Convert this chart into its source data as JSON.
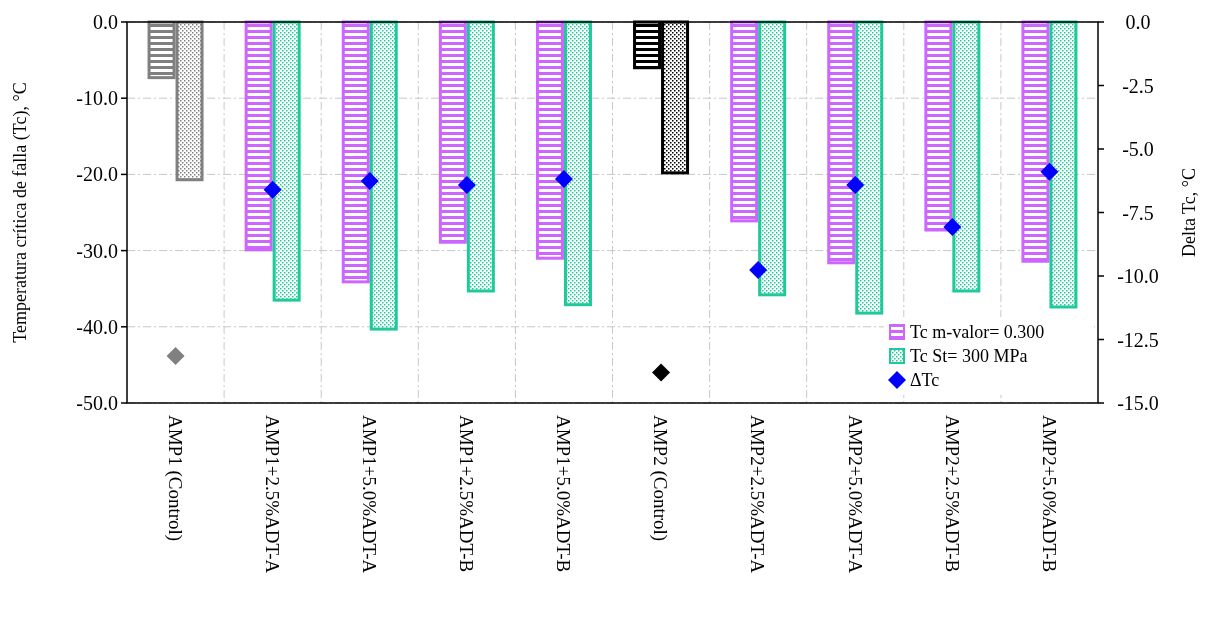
{
  "chart_data": {
    "type": "bar",
    "ylabel": "Temperatura crítica de falla (Tc), °C",
    "y2label": "Delta Tc, °C",
    "categories": [
      "AMP1 (Control)",
      "AMP1+2.5%ADT-A",
      "AMP1+5.0%ADT-A",
      "AMP1+2.5%ADT-B",
      "AMP1+5.0%ADT-B",
      "AMP2 (Control)",
      "AMP2+2.5%ADT-A",
      "AMP2+5.0%ADT-A",
      "AMP2+2.5%ADT-B",
      "AMP2+5.0%ADT-B"
    ],
    "series": [
      {
        "name": "Tc m-valor= 0.300",
        "color": "#cc66ff",
        "colors": [
          "#808080",
          "#cc66ff",
          "#cc66ff",
          "#cc66ff",
          "#cc66ff",
          "#000000",
          "#cc66ff",
          "#cc66ff",
          "#cc66ff",
          "#cc66ff"
        ],
        "values": [
          -7.3,
          -29.9,
          -34.1,
          -28.9,
          -31.0,
          -6.0,
          -26.1,
          -31.6,
          -27.3,
          -31.4
        ]
      },
      {
        "name": "Tc St= 300 MPa",
        "color": "#1fc99a",
        "colors": [
          "#808080",
          "#1fc99a",
          "#1fc99a",
          "#1fc99a",
          "#1fc99a",
          "#000000",
          "#1fc99a",
          "#1fc99a",
          "#1fc99a",
          "#1fc99a"
        ],
        "values": [
          -20.7,
          -36.5,
          -40.3,
          -35.3,
          -37.1,
          -19.8,
          -35.8,
          -38.2,
          -35.3,
          -37.4
        ]
      },
      {
        "name": "ΔTc",
        "type": "scatter",
        "axis": "y2",
        "marker": "diamond",
        "color": "#0000ff",
        "colors": [
          "#808080",
          "#0000ff",
          "#0000ff",
          "#0000ff",
          "#0000ff",
          "#000000",
          "#0000ff",
          "#0000ff",
          "#0000ff",
          "#0000ff"
        ],
        "values": [
          -13.15,
          -6.6,
          -6.26,
          -6.42,
          -6.18,
          -13.8,
          -9.76,
          -6.42,
          -8.07,
          -5.9
        ]
      }
    ],
    "ylim": [
      -50,
      0
    ],
    "yticks": [
      {
        "value": 0,
        "label": "0.0"
      },
      {
        "value": -10,
        "label": "-10.0"
      },
      {
        "value": -20,
        "label": "-20.0"
      },
      {
        "value": -30,
        "label": "-30.0"
      },
      {
        "value": -40,
        "label": "-40.0"
      },
      {
        "value": -50,
        "label": "-50.0"
      }
    ],
    "y2lim": [
      -15,
      0
    ],
    "y2ticks": [
      {
        "value": 0,
        "label": "0.0"
      },
      {
        "value": -2.5,
        "label": "-2.5"
      },
      {
        "value": -5,
        "label": "-5.0"
      },
      {
        "value": -7.5,
        "label": "-7.5"
      },
      {
        "value": -10,
        "label": "-10.0"
      },
      {
        "value": -12.5,
        "label": "-12.5"
      },
      {
        "value": -15,
        "label": "-15.0"
      }
    ],
    "grid": true,
    "legend": "bottom right"
  }
}
